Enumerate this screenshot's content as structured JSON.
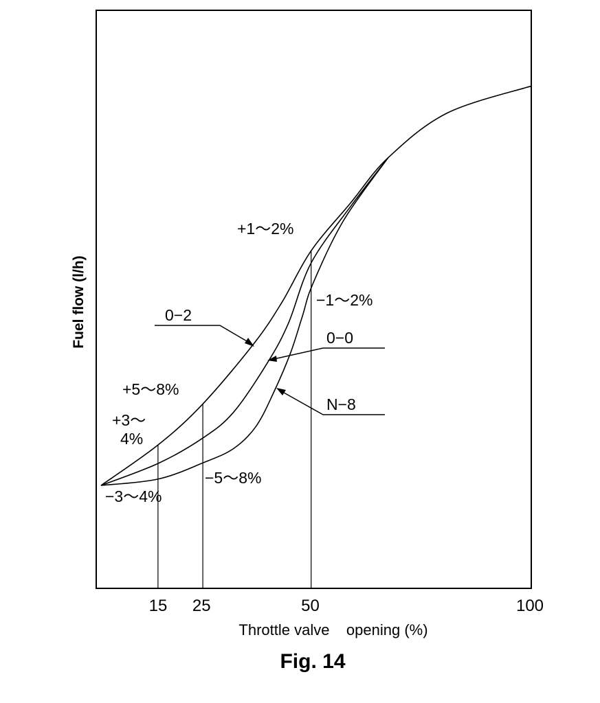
{
  "chart_data": {
    "type": "line",
    "title": "Fig. 14",
    "xlabel": "Throttle valve    opening (%)",
    "ylabel": "Fuel flow (l/h)",
    "xlim": [
      0,
      100
    ],
    "ylim": [
      0,
      100
    ],
    "x_ticks": [
      15,
      25,
      50,
      100
    ],
    "x_tick_labels": [
      "15",
      "25",
      "50",
      "100"
    ],
    "grid": false,
    "series": [
      {
        "name": "0-2",
        "label": "0−2",
        "x": [
          1.1,
          14.2,
          24.5,
          36.3,
          42.7,
          49.4,
          58.5,
          67.1,
          80.6,
          100
        ],
        "y": [
          17.8,
          24.8,
          31.9,
          42.4,
          49.5,
          58.4,
          66.7,
          74.5,
          82.2,
          86.9
        ]
      },
      {
        "name": "0-0",
        "label": "0−0",
        "x": [
          1.1,
          14.2,
          24.5,
          31.6,
          39.5,
          44.2,
          49.4,
          58.5,
          67.1
        ],
        "y": [
          17.8,
          21.6,
          26.0,
          30.5,
          39.2,
          45.9,
          56.3,
          66.1,
          74.5
        ]
      },
      {
        "name": "N-8",
        "label": "N−8",
        "x": [
          1.1,
          14.2,
          24.5,
          31.6,
          36.8,
          41.1,
          44.7,
          47.4,
          49.8,
          56.9,
          67.1
        ],
        "y": [
          17.8,
          18.9,
          21.7,
          24.2,
          28.1,
          34.4,
          40.8,
          47.1,
          52.7,
          63.7,
          74.5
        ]
      }
    ],
    "reference_lines": [
      {
        "x": 14.2,
        "top_y": 24.8
      },
      {
        "x": 24.5,
        "top_y": 31.9
      },
      {
        "x": 49.4,
        "top_y": 58.4
      }
    ],
    "annotations": {
      "plus_1_2": "+1～2%",
      "minus_1_2": "−1～2%",
      "plus_5_8": "+5～8%",
      "plus_3_4_line1": "+3～",
      "plus_3_4_line2": "4%",
      "minus_3_4": "−3～4%",
      "minus_5_8": "−5～8%"
    }
  }
}
